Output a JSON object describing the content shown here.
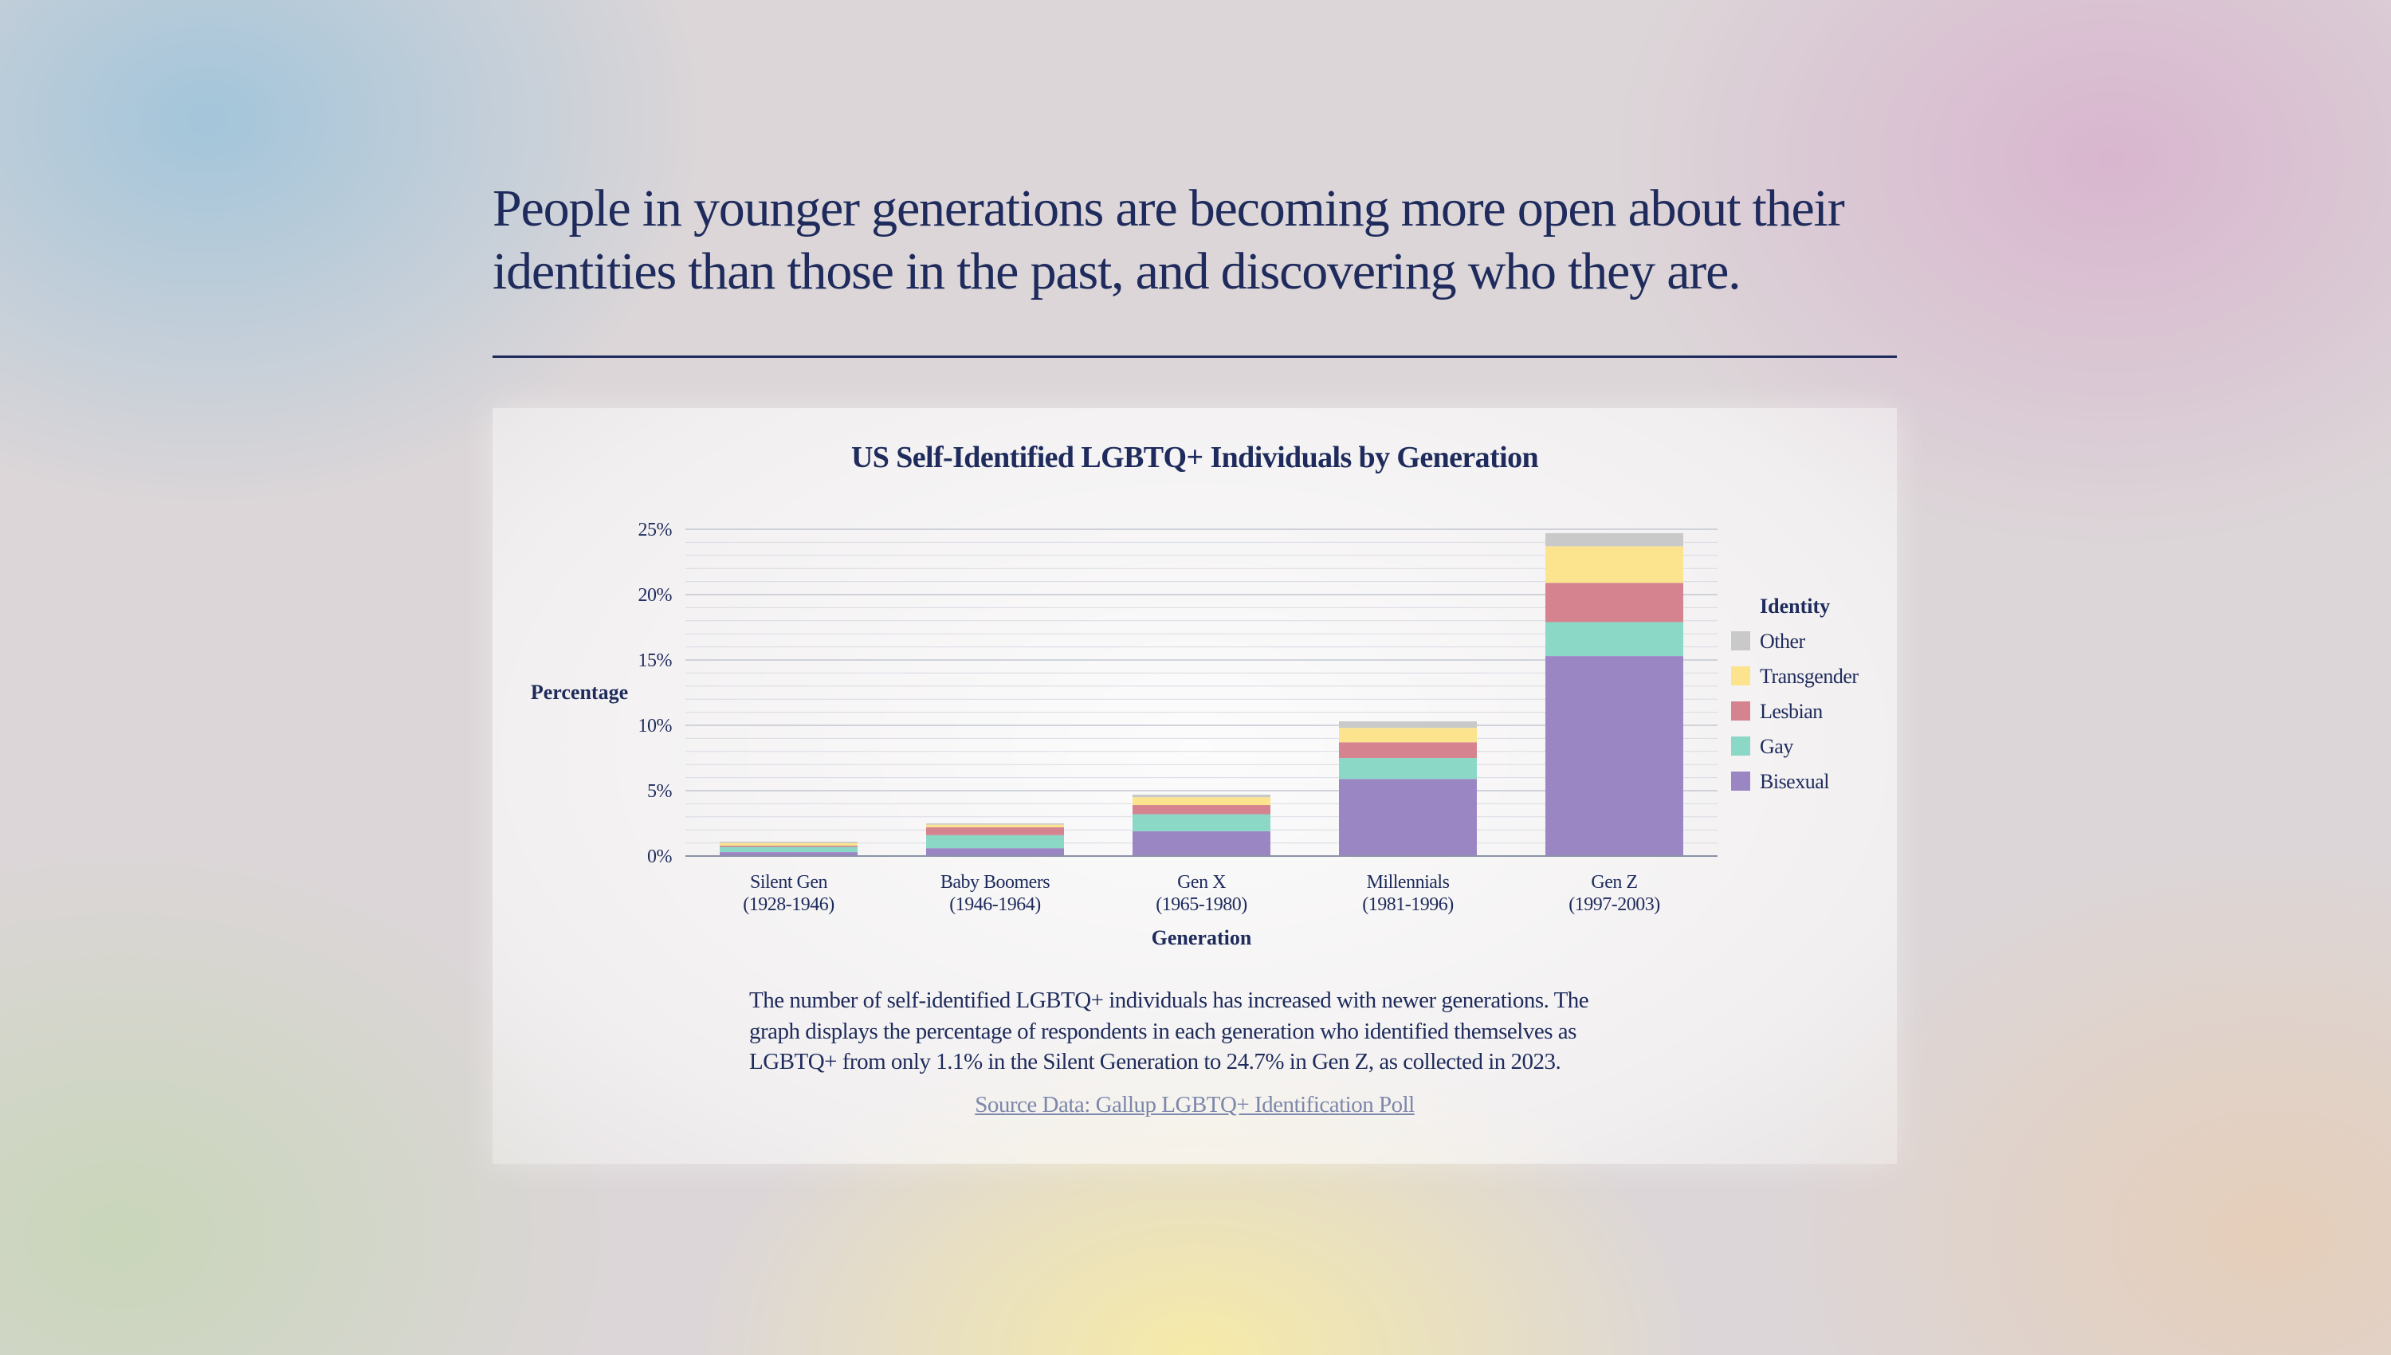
{
  "headline": "People in younger generations are becoming more open about their identities than those in the past, and discovering who they are.",
  "caption": "The number of self-identified LGBTQ+ individuals has increased with newer generations. The graph displays the percentage of respondents in each generation who identified themselves as LGBTQ+ from only 1.1% in the Silent Generation to 24.7% in Gen Z, as collected in 2023.",
  "source_label": "Source Data: Gallup LGBTQ+ Identification Poll",
  "colors": {
    "Bisexual": "#9b86c4",
    "Gay": "#8cd8c6",
    "Lesbian": "#d4838f",
    "Transgender": "#fbe48d",
    "Other": "#c9c9c9",
    "text": "#1e2b5c",
    "grid": "#d8dbe3"
  },
  "chart_data": {
    "type": "bar",
    "stacked": true,
    "title": "US Self-Identified LGBTQ+ Individuals by Generation",
    "xlabel": "Generation",
    "ylabel": "Percentage",
    "ylim": [
      0,
      25
    ],
    "yticks": [
      0,
      5,
      10,
      15,
      20,
      25
    ],
    "ytick_labels": [
      "0%",
      "5%",
      "10%",
      "15%",
      "20%",
      "25%"
    ],
    "categories": [
      {
        "name": "Silent Gen",
        "years": "(1928-1946)"
      },
      {
        "name": "Baby Boomers",
        "years": "(1946-1964)"
      },
      {
        "name": "Gen X",
        "years": "(1965-1980)"
      },
      {
        "name": "Millennials",
        "years": "(1981-1996)"
      },
      {
        "name": "Gen Z",
        "years": "(1997-2003)"
      }
    ],
    "legend_title": "Identity",
    "legend": [
      "Other",
      "Transgender",
      "Lesbian",
      "Gay",
      "Bisexual"
    ],
    "series": [
      {
        "name": "Bisexual",
        "values": [
          0.3,
          0.6,
          1.9,
          5.9,
          15.3
        ]
      },
      {
        "name": "Gay",
        "values": [
          0.4,
          1.0,
          1.3,
          1.6,
          2.6
        ]
      },
      {
        "name": "Lesbian",
        "values": [
          0.1,
          0.6,
          0.7,
          1.2,
          3.0
        ]
      },
      {
        "name": "Transgender",
        "values": [
          0.2,
          0.2,
          0.6,
          1.1,
          2.8
        ]
      },
      {
        "name": "Other",
        "values": [
          0.1,
          0.1,
          0.2,
          0.5,
          1.0
        ]
      }
    ]
  }
}
